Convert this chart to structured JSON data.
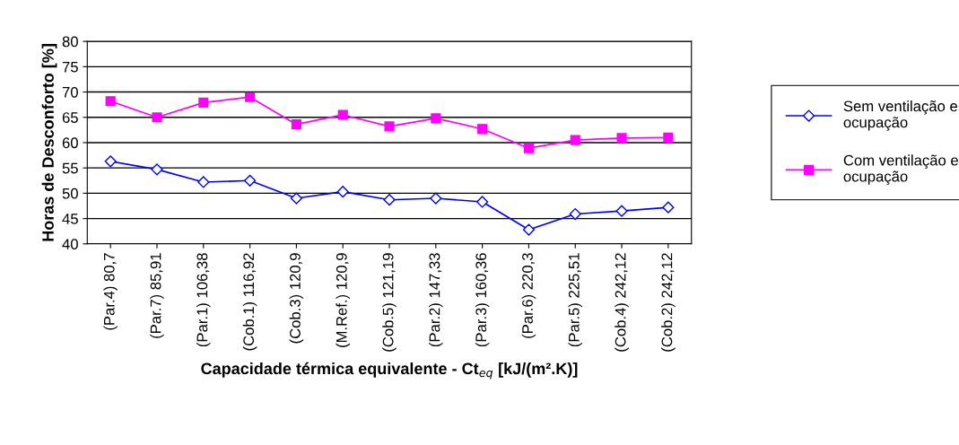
{
  "chart_data": {
    "type": "line",
    "xlabel": "Capacidade térmica equivalente - Ct$_{eq}$ [kJ/(m².K)]",
    "ylabel": "Horas de Desconforto [%]",
    "categories": [
      "(Par.4) 80,7",
      "(Par.7) 85,91",
      "(Par.1) 106,38",
      "(Cob.1) 116,92",
      "(Cob.3) 120,9",
      "(M.Ref.) 120,9",
      "(Cob.5) 121,19",
      "(Par.2) 147,33",
      "(Par.3) 160,36",
      "(Par.6) 220,3",
      "(Par.5) 225,51",
      "(Cob.4) 242,12",
      "(Cob.2) 242,12"
    ],
    "series": [
      {
        "name": "Sem ventilação e ocupação",
        "color": "#0000ff",
        "marker": "diamond",
        "values": [
          56.3,
          54.7,
          52.2,
          52.5,
          49.0,
          50.3,
          48.7,
          49.0,
          48.3,
          42.8,
          45.9,
          46.5,
          47.2
        ]
      },
      {
        "name": "Com ventilação e ocupação",
        "color": "#ff00ff",
        "marker": "square",
        "values": [
          68.2,
          65.0,
          67.9,
          69.0,
          63.6,
          65.5,
          63.2,
          64.8,
          62.7,
          58.9,
          60.5,
          60.9,
          61.0
        ]
      }
    ],
    "ylim": [
      40,
      80
    ],
    "yticks": [
      40,
      45,
      50,
      55,
      60,
      65,
      70,
      75,
      80
    ],
    "grid": "y",
    "legend": "right"
  }
}
